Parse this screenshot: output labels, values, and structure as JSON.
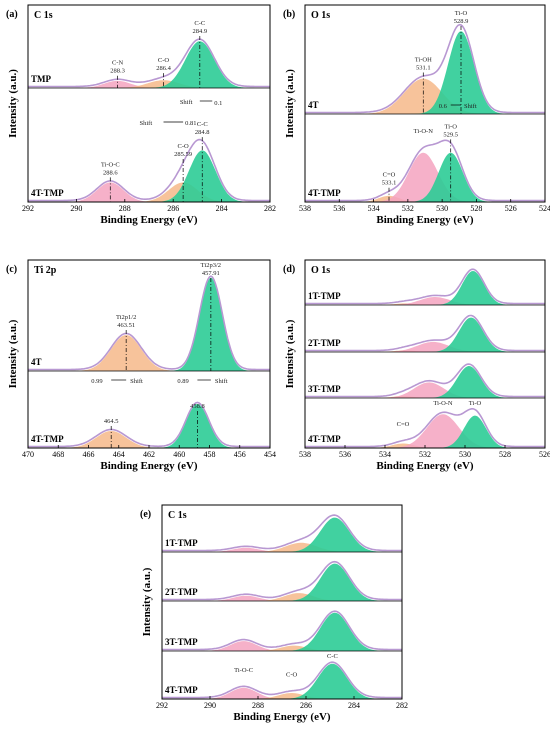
{
  "colors": {
    "pink": "#f4a3bf",
    "orange": "#f6b98a",
    "green": "#2ccc96",
    "blue": "#36b3e6",
    "envelope": "#b898d2"
  },
  "chart_data": [
    {
      "type": "area",
      "panel": "(a)",
      "title": "C 1s",
      "xlabel": "Binding Energy (eV)",
      "ylabel": "Intensity (a.u.)",
      "xlim": [
        292,
        282
      ],
      "xticks": [
        292,
        290,
        288,
        286,
        284,
        282
      ],
      "traces": [
        {
          "name": "TMP",
          "peaks": [
            {
              "center": 288.3,
              "height": 0.11,
              "width": 0.55,
              "color": "pink",
              "label": "C-N",
              "value": "288.3"
            },
            {
              "center": 286.4,
              "height": 0.12,
              "width": 0.65,
              "color": "orange",
              "label": "C-O",
              "value": "286.4"
            },
            {
              "center": 284.9,
              "height": 0.72,
              "width": 0.6,
              "color": "green",
              "label": "C-C",
              "value": "284.9"
            }
          ]
        },
        {
          "name": "4T-TMP",
          "peaks": [
            {
              "center": 288.6,
              "height": 0.22,
              "width": 0.55,
              "color": "pink",
              "label": "Ti-O-C",
              "value": "288.6"
            },
            {
              "center": 285.59,
              "height": 0.22,
              "width": 0.6,
              "color": "orange",
              "label": "C-O",
              "value": "285.59"
            },
            {
              "center": 284.8,
              "height": 0.58,
              "width": 0.55,
              "color": "green",
              "label": "C-C",
              "value": "284.8"
            }
          ]
        }
      ],
      "annotations": [
        "Shift",
        "Shift",
        "0.1",
        "0.81"
      ]
    },
    {
      "type": "area",
      "panel": "(b)",
      "title": "O 1s",
      "xlabel": "Binding Energy (eV)",
      "ylabel": "Intensity (a.u.)",
      "xlim": [
        538,
        524
      ],
      "xticks": [
        538,
        536,
        534,
        532,
        530,
        528,
        526,
        524
      ],
      "traces": [
        {
          "name": "4T",
          "peaks": [
            {
              "center": 531.1,
              "height": 0.35,
              "width": 1.1,
              "color": "orange",
              "label": "Ti-OH",
              "value": "531.1"
            },
            {
              "center": 528.9,
              "height": 0.82,
              "width": 0.75,
              "color": "green",
              "label": "Ti-O",
              "value": "528.9"
            }
          ]
        },
        {
          "name": "4T-TMP",
          "peaks": [
            {
              "center": 533.1,
              "height": 0.08,
              "width": 0.6,
              "color": "orange",
              "label": "C=O",
              "value": "533.1"
            },
            {
              "center": 531.1,
              "height": 0.64,
              "width": 0.85,
              "color": "pink",
              "label": "Ti-O-N",
              "value": ""
            },
            {
              "center": 529.5,
              "height": 0.64,
              "width": 0.7,
              "color": "green",
              "label": "Ti-O",
              "value": "529.5"
            }
          ]
        }
      ],
      "annotations": [
        "Shift",
        "0.6"
      ]
    },
    {
      "type": "area",
      "panel": "(c)",
      "title": "Ti 2p",
      "xlabel": "Binding Energy (eV)",
      "ylabel": "Intensity (a.u.)",
      "xlim": [
        470,
        454
      ],
      "xticks": [
        470,
        468,
        466,
        464,
        462,
        460,
        458,
        456,
        454
      ],
      "traces": [
        {
          "name": "4T",
          "peaks": [
            {
              "center": 463.51,
              "height": 0.34,
              "width": 1.0,
              "color": "orange",
              "label": "Ti2p1/2",
              "value": "463.51"
            },
            {
              "center": 457.91,
              "height": 0.88,
              "width": 0.75,
              "color": "green",
              "label": "Ti2p3/2",
              "value": "457.91"
            }
          ]
        },
        {
          "name": "4T-TMP",
          "peaks": [
            {
              "center": 464.5,
              "height": 0.34,
              "width": 1.0,
              "color": "orange",
              "label": "",
              "value": "464.5"
            },
            {
              "center": 458.8,
              "height": 0.88,
              "width": 0.75,
              "color": "green",
              "label": "",
              "value": "458.8"
            }
          ]
        }
      ],
      "annotations": [
        "Shift",
        "Shift",
        "0.99",
        "0.89"
      ]
    },
    {
      "type": "area",
      "panel": "(d)",
      "title": "O 1s",
      "xlabel": "Binding Energy (eV)",
      "ylabel": "Intensity (a.u.)",
      "xlim": [
        538,
        526
      ],
      "xticks": [
        538,
        536,
        534,
        532,
        530,
        528,
        526
      ],
      "traces": [
        {
          "name": "1T-TMP",
          "peaks": [
            {
              "center": 533.0,
              "height": 0.04,
              "width": 0.5,
              "color": "orange",
              "label": "",
              "value": ""
            },
            {
              "center": 531.5,
              "height": 0.2,
              "width": 0.75,
              "color": "pink",
              "label": "",
              "value": ""
            },
            {
              "center": 529.6,
              "height": 0.85,
              "width": 0.55,
              "color": "green",
              "label": "",
              "value": ""
            }
          ]
        },
        {
          "name": "2T-TMP",
          "peaks": [
            {
              "center": 533.0,
              "height": 0.04,
              "width": 0.5,
              "color": "orange",
              "label": "",
              "value": ""
            },
            {
              "center": 531.6,
              "height": 0.24,
              "width": 0.8,
              "color": "pink",
              "label": "",
              "value": ""
            },
            {
              "center": 529.7,
              "height": 0.82,
              "width": 0.6,
              "color": "green",
              "label": "",
              "value": ""
            }
          ]
        },
        {
          "name": "3T-TMP",
          "peaks": [
            {
              "center": 533.1,
              "height": 0.05,
              "width": 0.5,
              "color": "orange",
              "label": "",
              "value": ""
            },
            {
              "center": 531.8,
              "height": 0.38,
              "width": 0.75,
              "color": "pink",
              "label": "",
              "value": ""
            },
            {
              "center": 529.8,
              "height": 0.78,
              "width": 0.6,
              "color": "green",
              "label": "",
              "value": ""
            }
          ]
        },
        {
          "name": "4T-TMP",
          "peaks": [
            {
              "center": 533.1,
              "height": 0.1,
              "width": 0.55,
              "color": "orange",
              "label": "C=O",
              "value": ""
            },
            {
              "center": 531.1,
              "height": 0.75,
              "width": 0.8,
              "color": "pink",
              "label": "Ti-O-N",
              "value": ""
            },
            {
              "center": 529.5,
              "height": 0.72,
              "width": 0.55,
              "color": "green",
              "label": "Ti-O",
              "value": ""
            }
          ]
        }
      ]
    },
    {
      "type": "area",
      "panel": "(e)",
      "title": "C 1s",
      "xlabel": "Binding Energy (eV)",
      "ylabel": "Intensity (a.u.)",
      "xlim": [
        292,
        282
      ],
      "xticks": [
        292,
        290,
        288,
        286,
        284,
        282
      ],
      "traces": [
        {
          "name": "1T-TMP",
          "peaks": [
            {
              "center": 288.5,
              "height": 0.1,
              "width": 0.55,
              "color": "pink",
              "label": "",
              "value": ""
            },
            {
              "center": 286.2,
              "height": 0.22,
              "width": 0.65,
              "color": "orange",
              "label": "",
              "value": ""
            },
            {
              "center": 284.8,
              "height": 0.82,
              "width": 0.6,
              "color": "green",
              "label": "",
              "value": ""
            }
          ]
        },
        {
          "name": "2T-TMP",
          "peaks": [
            {
              "center": 288.5,
              "height": 0.12,
              "width": 0.55,
              "color": "pink",
              "label": "",
              "value": ""
            },
            {
              "center": 286.3,
              "height": 0.18,
              "width": 0.6,
              "color": "orange",
              "label": "",
              "value": ""
            },
            {
              "center": 284.8,
              "height": 0.85,
              "width": 0.6,
              "color": "green",
              "label": "",
              "value": ""
            }
          ]
        },
        {
          "name": "3T-TMP",
          "peaks": [
            {
              "center": 288.6,
              "height": 0.22,
              "width": 0.55,
              "color": "pink",
              "label": "",
              "value": ""
            },
            {
              "center": 286.5,
              "height": 0.12,
              "width": 0.55,
              "color": "orange",
              "label": "",
              "value": ""
            },
            {
              "center": 284.8,
              "height": 0.85,
              "width": 0.6,
              "color": "green",
              "label": "",
              "value": ""
            }
          ]
        },
        {
          "name": "4T-TMP",
          "peaks": [
            {
              "center": 288.6,
              "height": 0.26,
              "width": 0.55,
              "color": "pink",
              "label": "Ti-O-C",
              "value": ""
            },
            {
              "center": 286.6,
              "height": 0.14,
              "width": 0.55,
              "color": "orange",
              "label": "C-O",
              "value": ""
            },
            {
              "center": 284.9,
              "height": 0.82,
              "width": 0.6,
              "color": "green",
              "label": "C-C",
              "value": ""
            }
          ]
        }
      ]
    }
  ]
}
